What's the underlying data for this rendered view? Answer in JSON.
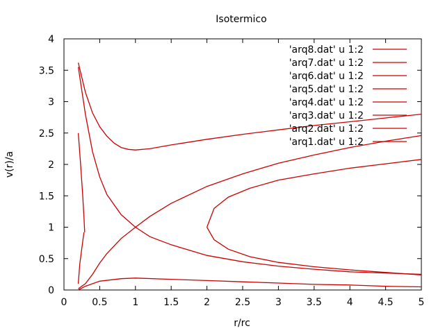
{
  "chart_data": {
    "type": "line",
    "title": "Isotermico",
    "xlabel": "r/rc",
    "ylabel": "v(r)/a",
    "xlim": [
      0,
      5
    ],
    "ylim": [
      0,
      4
    ],
    "xticks": [
      "0",
      "0.5",
      "1",
      "1.5",
      "2",
      "2.5",
      "3",
      "3.5",
      "4",
      "4.5",
      "5"
    ],
    "yticks": [
      "0",
      "0.5",
      "1",
      "1.5",
      "2",
      "2.5",
      "3",
      "3.5",
      "4"
    ],
    "grid": false,
    "legend_position": "top-right",
    "series_color": "#cc0000",
    "series": [
      {
        "name": "'arq8.dat' u 1:2",
        "x": [
          0.2,
          0.3,
          0.4,
          0.5,
          0.6,
          0.7,
          0.8,
          0.9,
          1.0,
          1.2,
          1.5,
          2.0,
          2.5,
          3.0,
          3.5,
          4.0,
          4.5,
          5.0
        ],
        "y": [
          3.62,
          3.15,
          2.82,
          2.6,
          2.45,
          2.34,
          2.27,
          2.24,
          2.23,
          2.25,
          2.31,
          2.4,
          2.48,
          2.55,
          2.62,
          2.68,
          2.74,
          2.8
        ]
      },
      {
        "name": "'arq7.dat' u 1:2",
        "x": [
          0.2,
          0.3,
          0.4,
          0.5,
          0.6,
          0.8,
          1.0,
          1.2,
          1.5,
          2.0,
          2.5,
          3.0,
          3.5,
          4.0,
          4.5,
          5.0
        ],
        "y": [
          3.55,
          2.8,
          2.2,
          1.8,
          1.52,
          1.2,
          1.0,
          0.85,
          0.72,
          0.55,
          0.45,
          0.38,
          0.33,
          0.29,
          0.27,
          0.25
        ]
      },
      {
        "name": "'arq6.dat' u 1:2",
        "x": [
          0.2,
          0.3,
          0.4,
          0.5,
          0.6,
          0.8,
          1.0,
          1.2,
          1.5,
          2.0,
          2.5,
          3.0,
          3.5,
          4.0,
          4.5,
          5.0
        ],
        "y": [
          0.02,
          0.1,
          0.25,
          0.43,
          0.58,
          0.82,
          1.0,
          1.17,
          1.38,
          1.65,
          1.85,
          2.02,
          2.15,
          2.27,
          2.37,
          2.46
        ]
      },
      {
        "name": "'arq5.dat' u 1:2",
        "x": [
          2.0,
          2.1,
          2.3,
          2.6,
          3.0,
          3.5,
          4.0,
          4.5,
          5.0
        ],
        "y": [
          1.0,
          1.3,
          1.48,
          1.62,
          1.75,
          1.85,
          1.94,
          2.01,
          2.08
        ]
      },
      {
        "name": "'arq4.dat' u 1:2",
        "x": [
          2.0,
          2.1,
          2.3,
          2.6,
          3.0,
          3.5,
          4.0,
          4.5,
          5.0
        ],
        "y": [
          1.0,
          0.8,
          0.65,
          0.53,
          0.44,
          0.37,
          0.32,
          0.28,
          0.24
        ]
      },
      {
        "name": "'arq3.dat' u 1:2",
        "x": [
          0.2,
          0.21,
          0.22,
          0.24,
          0.26,
          0.28
        ],
        "y": [
          0.1,
          0.25,
          0.4,
          0.58,
          0.75,
          0.92
        ]
      },
      {
        "name": "'arq2.dat' u 1:2",
        "x": [
          0.2,
          0.23,
          0.26,
          0.28,
          0.29
        ],
        "y": [
          2.5,
          2.05,
          1.55,
          1.15,
          0.92
        ]
      },
      {
        "name": "'arq1.dat' u 1:2",
        "x": [
          0.2,
          0.3,
          0.5,
          0.8,
          1.0,
          1.5,
          2.0,
          2.5,
          3.0,
          3.5,
          4.0,
          4.5,
          5.0
        ],
        "y": [
          0.0,
          0.06,
          0.14,
          0.18,
          0.19,
          0.17,
          0.15,
          0.13,
          0.11,
          0.09,
          0.08,
          0.06,
          0.05
        ]
      }
    ]
  }
}
